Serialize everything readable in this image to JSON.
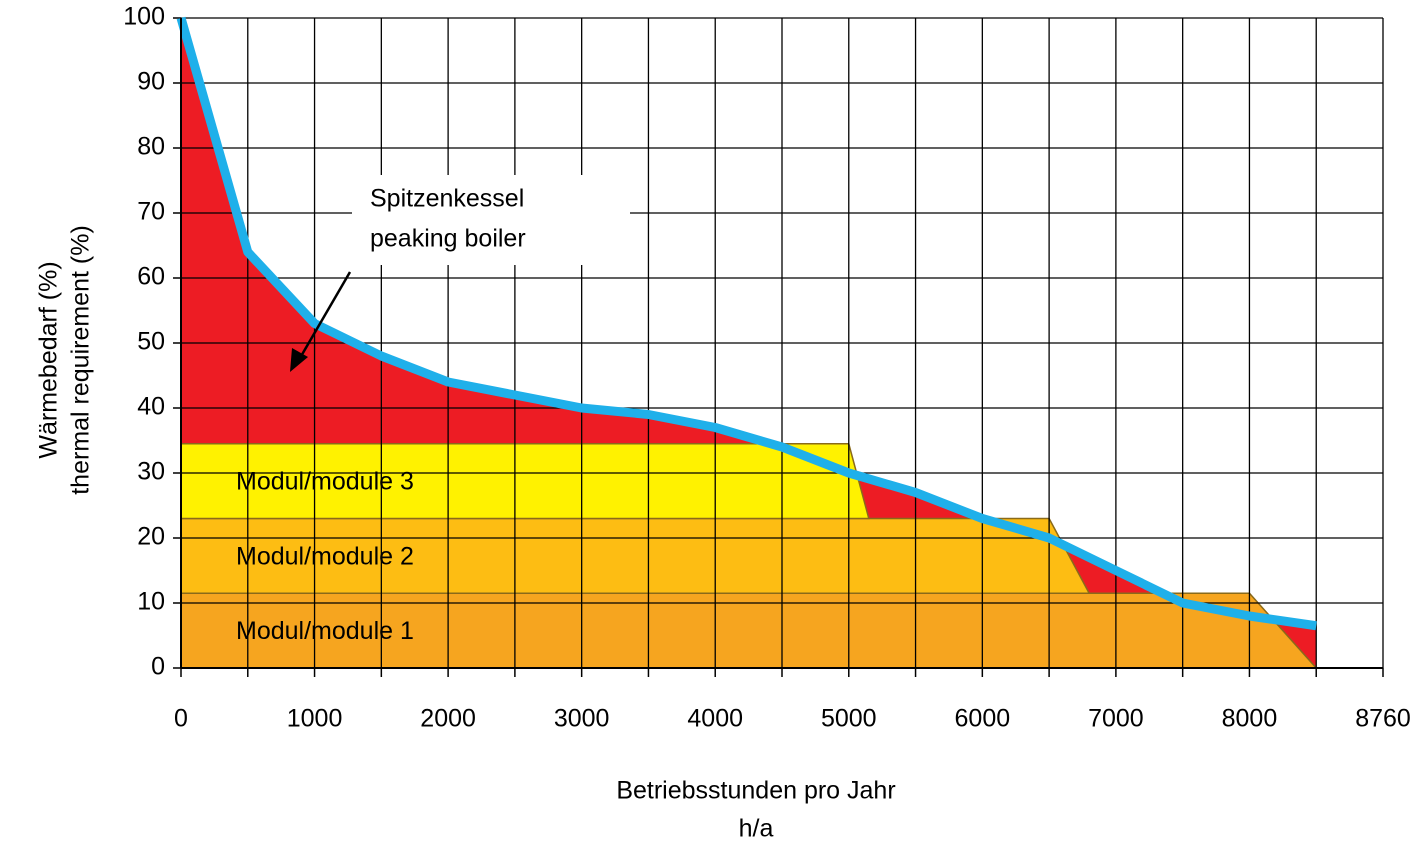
{
  "chart_data": {
    "type": "load-duration",
    "ylabel": [
      "Wärmebedarf (%)",
      "thermal requirement (%)"
    ],
    "xlabel": [
      "Betriebsstunden pro Jahr",
      "h/a"
    ],
    "annotation": [
      "Spitzenkessel",
      "peaking boiler"
    ],
    "xlim": [
      0,
      8760
    ],
    "xticks": [
      0,
      1000,
      2000,
      3000,
      4000,
      5000,
      6000,
      7000,
      8000,
      8760
    ],
    "x_minor_ticks": [
      500,
      1500,
      2500,
      3500,
      4500,
      5500,
      6500,
      7500,
      8500
    ],
    "ylim": [
      0,
      100
    ],
    "yticks": [
      0,
      10,
      20,
      30,
      40,
      50,
      60,
      70,
      80,
      90,
      100
    ],
    "grid": true,
    "demand": {
      "color": "#1fb0ea",
      "fill": "#ed1c24",
      "x": [
        0,
        500,
        1000,
        1500,
        2000,
        2500,
        3000,
        3500,
        4000,
        4500,
        5000,
        5500,
        6000,
        6500,
        7000,
        7500,
        8000,
        8500
      ],
      "values": [
        100,
        64,
        53,
        48,
        44,
        42,
        40,
        39,
        37,
        34,
        30,
        27,
        23,
        20,
        15,
        10,
        8,
        6.5
      ]
    },
    "series": [
      {
        "name": "Modul/module 1",
        "color": "#f6a51f",
        "x": [
          0,
          8000,
          8500
        ],
        "values": [
          11.5,
          11.5,
          0
        ]
      },
      {
        "name": "Modul/module 2",
        "color": "#fdbd13",
        "x": [
          0,
          6500,
          6800
        ],
        "values": [
          11.5,
          11.5,
          0
        ]
      },
      {
        "name": "Modul/module 3",
        "color": "#fff200",
        "x": [
          0,
          5000,
          5150
        ],
        "values": [
          11.5,
          11.5,
          0
        ]
      }
    ]
  }
}
